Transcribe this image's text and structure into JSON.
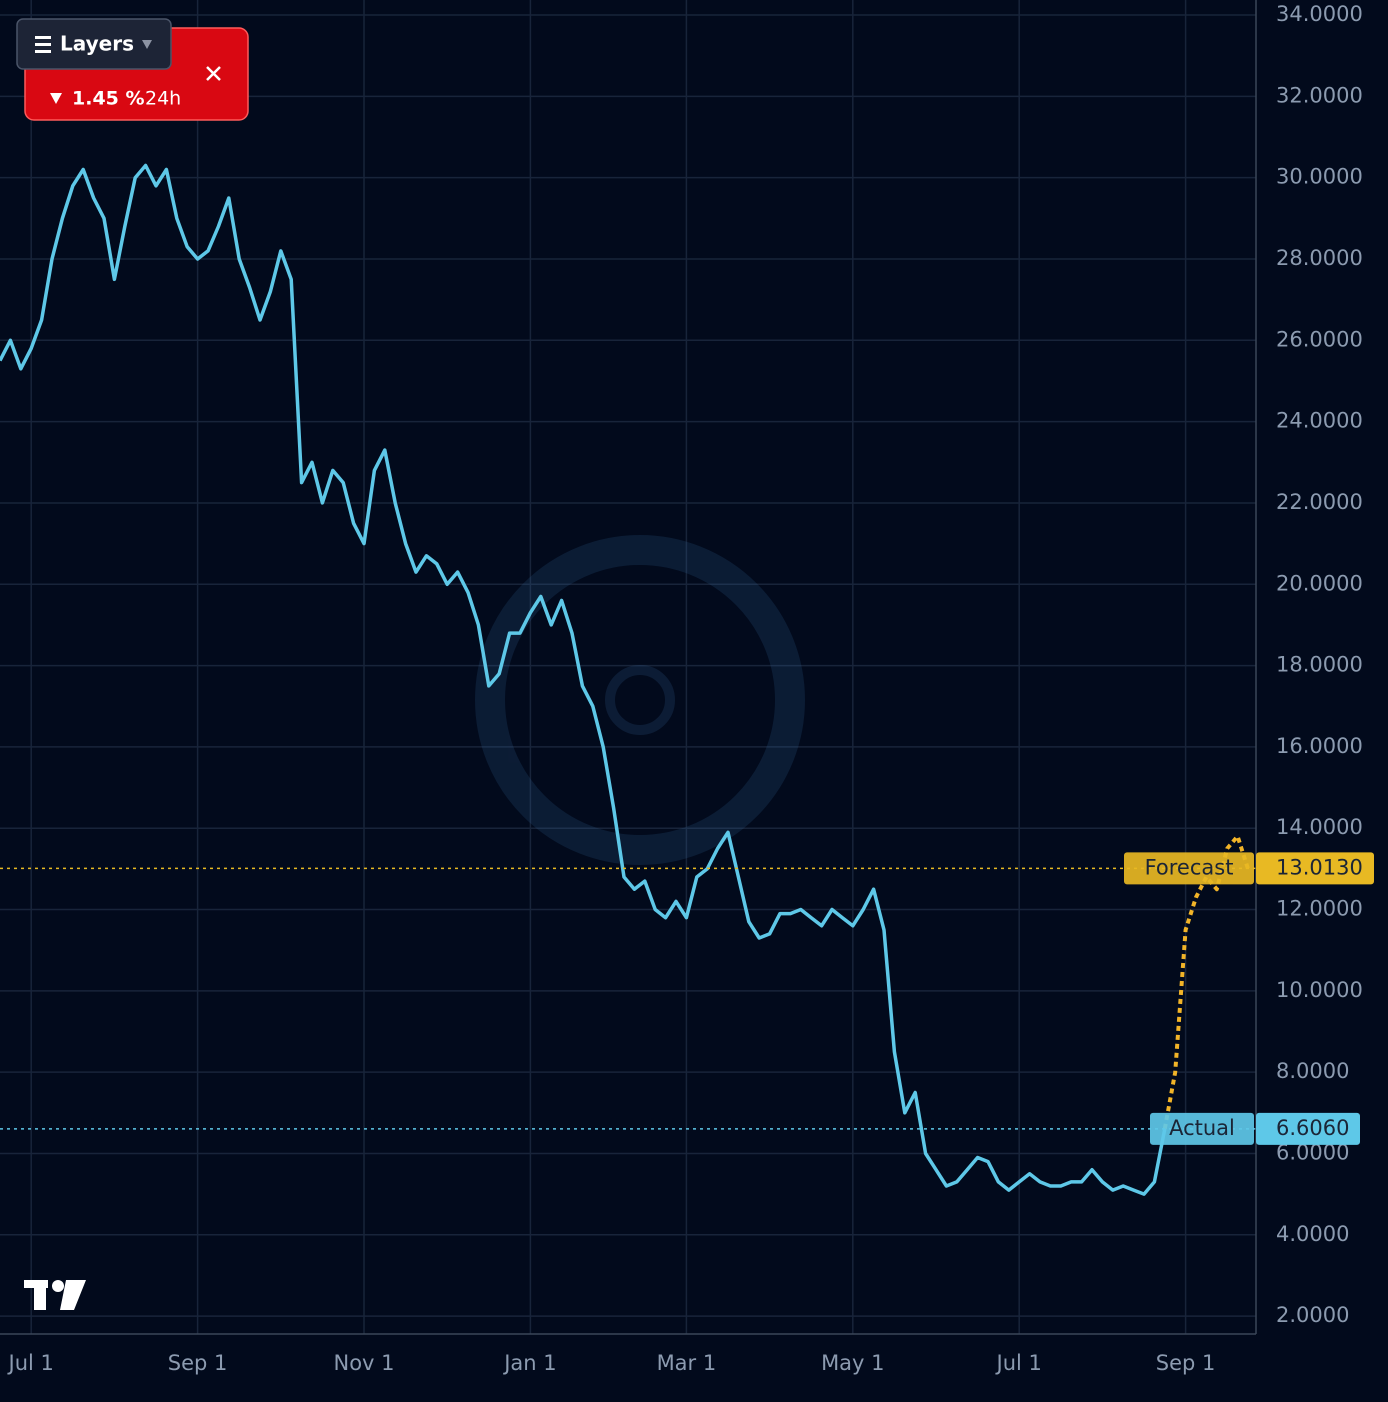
{
  "chart_data": {
    "type": "line",
    "categories": [
      null,
      null,
      null,
      "Jul 1",
      null,
      null,
      null,
      null,
      null,
      null,
      null,
      null,
      null,
      null,
      null,
      null,
      null,
      null,
      null,
      "Sep 1",
      null,
      null,
      null,
      null,
      null,
      null,
      null,
      null,
      null,
      null,
      null,
      null,
      null,
      null,
      null,
      "Nov 1",
      null,
      null,
      null,
      null,
      null,
      null,
      null,
      null,
      null,
      null,
      null,
      null,
      null,
      null,
      null,
      "Jan 1",
      null,
      null,
      null,
      null,
      null,
      null,
      null,
      null,
      null,
      null,
      null,
      null,
      null,
      null,
      "Mar 1",
      null,
      null,
      null,
      null,
      null,
      null,
      null,
      null,
      null,
      null,
      null,
      null,
      null,
      null,
      null,
      "May 1",
      null,
      null,
      null,
      null,
      null,
      null,
      null,
      null,
      null,
      null,
      null,
      null,
      null,
      null,
      null,
      "Jul 1",
      null,
      null,
      null,
      null,
      null,
      null,
      null,
      null,
      null,
      null,
      null,
      null,
      null,
      null,
      null,
      "Sep 1",
      null,
      null,
      null,
      null,
      null,
      null
    ],
    "series": [
      {
        "name": "Actual",
        "color": "#5ec8e8",
        "dashed": false,
        "values": [
          25.5,
          26.0,
          25.3,
          25.8,
          26.5,
          28.0,
          29.0,
          29.8,
          30.2,
          29.5,
          29.0,
          27.5,
          28.8,
          30.0,
          30.3,
          29.8,
          30.2,
          29.0,
          28.3,
          28.0,
          28.2,
          28.8,
          29.5,
          28.0,
          27.3,
          26.5,
          27.2,
          28.2,
          27.5,
          22.5,
          23.0,
          22.0,
          22.8,
          22.5,
          21.5,
          21.0,
          22.8,
          23.3,
          22.0,
          21.0,
          20.3,
          20.7,
          20.5,
          20.0,
          20.3,
          19.8,
          19.0,
          17.5,
          17.8,
          18.8,
          18.8,
          19.3,
          19.7,
          19.0,
          19.6,
          18.8,
          17.5,
          17.0,
          16.0,
          14.5,
          12.8,
          12.5,
          12.7,
          12.0,
          11.8,
          12.2,
          11.8,
          12.8,
          13.0,
          13.5,
          13.9,
          12.8,
          11.7,
          11.3,
          11.4,
          11.9,
          11.9,
          12.0,
          11.8,
          11.6,
          12.0,
          11.8,
          11.6,
          12.0,
          12.5,
          11.5,
          8.5,
          7.0,
          7.5,
          6.0,
          5.6,
          5.2,
          5.3,
          5.6,
          5.9,
          5.8,
          5.3,
          5.1,
          5.3,
          5.5,
          5.3,
          5.2,
          5.2,
          5.3,
          5.3,
          5.6,
          5.3,
          5.1,
          5.2,
          5.1,
          5.0,
          5.3,
          6.606,
          null,
          null,
          null,
          null,
          null,
          null,
          null,
          null
        ]
      },
      {
        "name": "Forecast",
        "color": "#f2b428",
        "dashed": true,
        "values": [
          null,
          null,
          null,
          null,
          null,
          null,
          null,
          null,
          null,
          null,
          null,
          null,
          null,
          null,
          null,
          null,
          null,
          null,
          null,
          null,
          null,
          null,
          null,
          null,
          null,
          null,
          null,
          null,
          null,
          null,
          null,
          null,
          null,
          null,
          null,
          null,
          null,
          null,
          null,
          null,
          null,
          null,
          null,
          null,
          null,
          null,
          null,
          null,
          null,
          null,
          null,
          null,
          null,
          null,
          null,
          null,
          null,
          null,
          null,
          null,
          null,
          null,
          null,
          null,
          null,
          null,
          null,
          null,
          null,
          null,
          null,
          null,
          null,
          null,
          null,
          null,
          null,
          null,
          null,
          null,
          null,
          null,
          null,
          null,
          null,
          null,
          null,
          null,
          null,
          null,
          null,
          null,
          null,
          null,
          null,
          null,
          null,
          null,
          null,
          null,
          null,
          null,
          null,
          null,
          null,
          null,
          null,
          null,
          null,
          null,
          null,
          null,
          6.606,
          8.0,
          11.5,
          12.3,
          12.8,
          12.5,
          13.5,
          13.8,
          13.0
        ]
      }
    ],
    "price_lines": [
      {
        "name": "Forecast",
        "value": 13.013,
        "value_label": "13.0130",
        "color": "#e8b923"
      },
      {
        "name": "Actual",
        "value": 6.606,
        "value_label": "6.6060",
        "color": "#5ec8e8"
      }
    ],
    "ylim": [
      1.56,
      34.37
    ],
    "yticks": [
      {
        "value": 2,
        "label": "2.0000"
      },
      {
        "value": 4,
        "label": "4.0000"
      },
      {
        "value": 6,
        "label": "6.0000"
      },
      {
        "value": 8,
        "label": "8.0000"
      },
      {
        "value": 10,
        "label": "10.0000"
      },
      {
        "value": 12,
        "label": "12.0000"
      },
      {
        "value": 14,
        "label": "14.0000"
      },
      {
        "value": 16,
        "label": "16.0000"
      },
      {
        "value": 18,
        "label": "18.0000"
      },
      {
        "value": 20,
        "label": "20.0000"
      },
      {
        "value": 22,
        "label": "22.0000"
      },
      {
        "value": 24,
        "label": "24.0000"
      },
      {
        "value": 26,
        "label": "26.0000"
      },
      {
        "value": 28,
        "label": "28.0000"
      },
      {
        "value": 30,
        "label": "30.0000"
      },
      {
        "value": 32,
        "label": "32.0000"
      },
      {
        "value": 34,
        "label": "34.0000"
      }
    ],
    "grid": true
  },
  "widget": {
    "button": "Layers",
    "change": "1.45 %",
    "period": "24h"
  }
}
